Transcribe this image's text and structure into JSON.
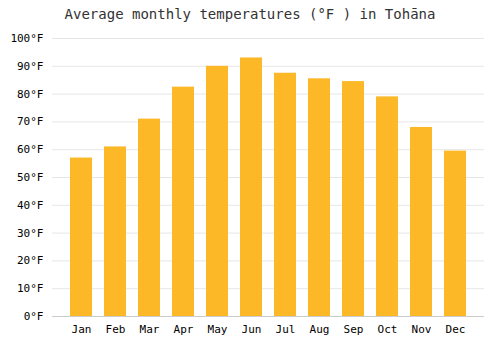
{
  "chart_data": {
    "type": "bar",
    "title": "Average monthly temperatures (°F ) in Tohāna",
    "categories": [
      "Jan",
      "Feb",
      "Mar",
      "Apr",
      "May",
      "Jun",
      "Jul",
      "Aug",
      "Sep",
      "Oct",
      "Nov",
      "Dec"
    ],
    "values": [
      57,
      61,
      71,
      82.5,
      90,
      93,
      87.5,
      85.5,
      84.5,
      79,
      68,
      59.5
    ],
    "color": "#FDB827",
    "ylim": [
      0,
      100
    ],
    "yticks": [
      {
        "value": 0,
        "label": "0°F"
      },
      {
        "value": 10,
        "label": "10°F"
      },
      {
        "value": 20,
        "label": "20°F"
      },
      {
        "value": 30,
        "label": "30°F"
      },
      {
        "value": 40,
        "label": "40°F"
      },
      {
        "value": 50,
        "label": "50°F"
      },
      {
        "value": 60,
        "label": "60°F"
      },
      {
        "value": 70,
        "label": "70°F"
      },
      {
        "value": 80,
        "label": "80°F"
      },
      {
        "value": 90,
        "label": "90°F"
      },
      {
        "value": 100,
        "label": "100°F"
      }
    ],
    "grid": true
  }
}
